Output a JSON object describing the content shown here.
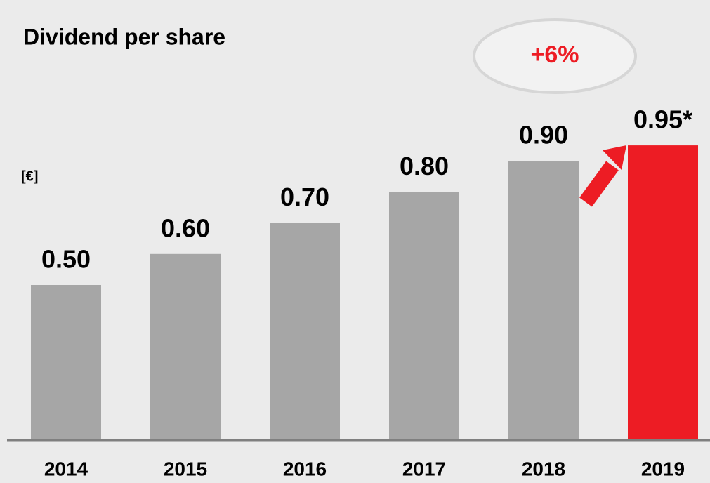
{
  "chart_data": {
    "type": "bar",
    "title": "Dividend per share",
    "unit_label": "[€]",
    "annotation": "+6%",
    "categories": [
      "2014",
      "2015",
      "2016",
      "2017",
      "2018",
      "2019"
    ],
    "values": [
      0.5,
      0.6,
      0.7,
      0.8,
      0.9,
      0.95
    ],
    "value_labels": [
      "0.50",
      "0.60",
      "0.70",
      "0.80",
      "0.90",
      "0.95*"
    ],
    "colors": [
      "#a6a6a6",
      "#a6a6a6",
      "#a6a6a6",
      "#a6a6a6",
      "#a6a6a6",
      "#ed1c24"
    ],
    "annotation_color": "#ed1c24"
  }
}
